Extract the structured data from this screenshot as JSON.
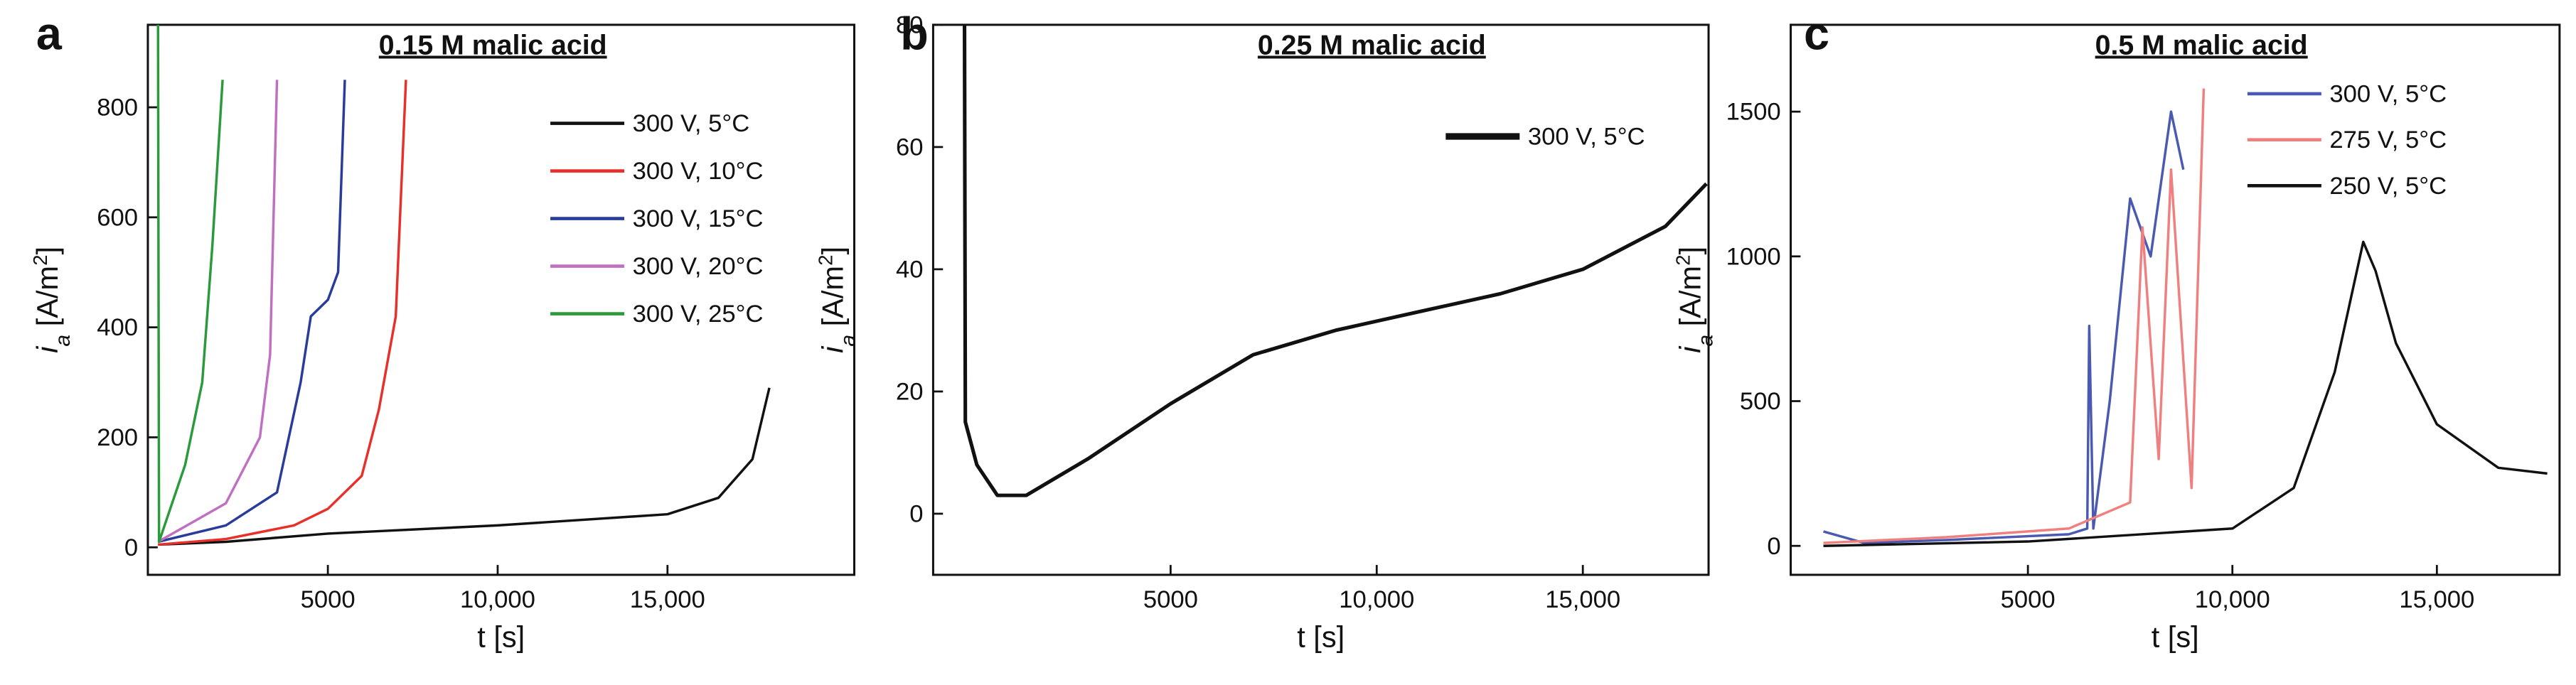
{
  "chart_data": [
    {
      "type": "line",
      "panel_label": "a",
      "title": "0.15 M malic acid",
      "x_label": "t [s]",
      "y_label": [
        "i",
        "a",
        " [A/m",
        "2",
        "]"
      ],
      "xlim": [
        -300,
        20500
      ],
      "ylim": [
        -50,
        950
      ],
      "xticks": [
        5000,
        {
          "value": 10000,
          "label": "10,000"
        },
        {
          "value": 15000,
          "label": "15,000"
        }
      ],
      "yticks": [
        0,
        200,
        400,
        600,
        800
      ],
      "series": [
        {
          "name": "300 V, 5°C",
          "color": "#111111",
          "x": [
            0,
            2000,
            5000,
            10000,
            15000,
            16500,
            17500,
            18000
          ],
          "values": [
            5,
            10,
            25,
            40,
            60,
            90,
            160,
            290
          ]
        },
        {
          "name": "300 V, 10°C",
          "color": "#e8302a",
          "x": [
            0,
            2000,
            4000,
            5000,
            6000,
            6500,
            7000,
            7300
          ],
          "values": [
            5,
            15,
            40,
            70,
            130,
            250,
            420,
            850
          ]
        },
        {
          "name": "300 V, 15°C",
          "color": "#2a3c9a",
          "x": [
            0,
            2000,
            3500,
            4200,
            4500,
            5000,
            5300,
            5500
          ],
          "values": [
            10,
            40,
            100,
            300,
            420,
            450,
            500,
            850
          ]
        },
        {
          "name": "300 V, 20°C",
          "color": "#c070c0",
          "x": [
            0,
            2000,
            3000,
            3300,
            3500
          ],
          "values": [
            10,
            80,
            200,
            350,
            850
          ]
        },
        {
          "name": "300 V, 25°C",
          "color": "#2a9a3a",
          "x": [
            0,
            30,
            800,
            1300,
            1600,
            1900
          ],
          "values": [
            950,
            10,
            150,
            300,
            550,
            850
          ]
        }
      ]
    },
    {
      "type": "line",
      "panel_label": "b",
      "title": "0.25 M malic acid",
      "x_label": "t [s]",
      "y_label": [
        "i",
        "a",
        " [A/m",
        "2",
        "]"
      ],
      "xlim": [
        -760,
        18050
      ],
      "ylim": [
        -10,
        80
      ],
      "xticks": [
        5000,
        {
          "value": 10000,
          "label": "10,000"
        },
        {
          "value": 15000,
          "label": "15,000"
        }
      ],
      "yticks": [
        0,
        20,
        40,
        60,
        80
      ],
      "series": [
        {
          "name": "300 V, 5°C",
          "color": "#111111",
          "x": [
            0,
            20,
            300,
            800,
            1500,
            3000,
            5000,
            7000,
            9000,
            11000,
            13000,
            15000,
            17000,
            18000
          ],
          "values": [
            80,
            15,
            8,
            3,
            3,
            9,
            18,
            26,
            30,
            33,
            36,
            40,
            47,
            54
          ]
        }
      ]
    },
    {
      "type": "line",
      "panel_label": "c",
      "title": "0.5 M malic acid",
      "x_label": "t [s]",
      "y_label": [
        "i",
        "a",
        " [A/m",
        "2",
        "]"
      ],
      "xlim": [
        -800,
        18000
      ],
      "ylim": [
        -100,
        1800
      ],
      "xticks": [
        5000,
        {
          "value": 10000,
          "label": "10,000"
        },
        {
          "value": 15000,
          "label": "15,000"
        }
      ],
      "yticks": [
        0,
        500,
        1000,
        1500
      ],
      "series": [
        {
          "name": "300 V, 5°C",
          "color": "#4a5ab0",
          "x": [
            0,
            1000,
            3000,
            6000,
            6450,
            6500,
            6600,
            7000,
            7500,
            8000,
            8500,
            8800
          ],
          "values": [
            50,
            10,
            20,
            40,
            60,
            760,
            60,
            500,
            1200,
            1000,
            1500,
            1300
          ]
        },
        {
          "name": "275 V, 5°C",
          "color": "#f08080",
          "x": [
            0,
            3000,
            6000,
            7500,
            7800,
            8200,
            8500,
            9000,
            9300
          ],
          "values": [
            10,
            30,
            60,
            150,
            1100,
            300,
            1300,
            200,
            1580
          ]
        },
        {
          "name": "250 V, 5°C",
          "color": "#111111",
          "x": [
            0,
            5000,
            10000,
            11500,
            12500,
            13200,
            13500,
            14000,
            15000,
            16500,
            17700
          ],
          "values": [
            0,
            15,
            60,
            200,
            600,
            1050,
            950,
            700,
            420,
            270,
            250
          ]
        }
      ]
    }
  ]
}
